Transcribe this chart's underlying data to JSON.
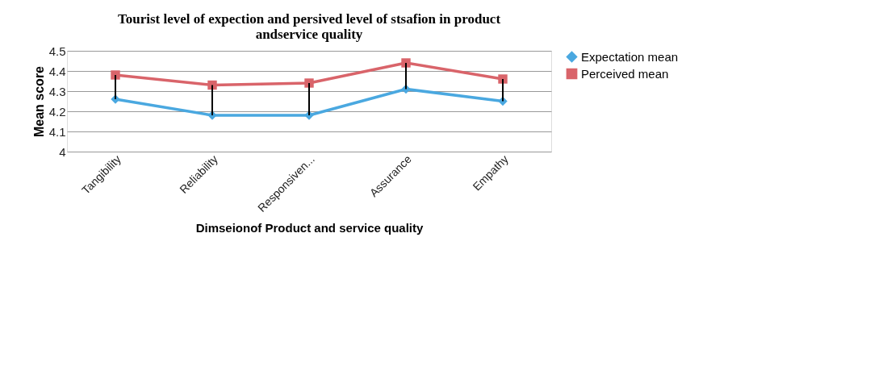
{
  "chart_data": {
    "type": "line",
    "title": "Tourist level of expection and persived level of stsafion in product andservice quality",
    "xlabel": "Dimseionof Product and service quality",
    "ylabel": "Mean score",
    "categories": [
      "Tangibility",
      "Reliability",
      "Responsiven...",
      "Assurance",
      "Empathy"
    ],
    "series": [
      {
        "name": "Expectation mean",
        "color": "#4aa8e0",
        "marker": "diamond",
        "values": [
          4.26,
          4.18,
          4.18,
          4.31,
          4.25
        ],
        "errors": [
          [
            4.26,
            4.38
          ],
          [
            4.18,
            4.33
          ],
          [
            4.18,
            4.34
          ],
          [
            4.31,
            4.44
          ],
          [
            4.25,
            4.36
          ]
        ]
      },
      {
        "name": "Perceived mean",
        "color": "#d9646a",
        "marker": "square",
        "values": [
          4.38,
          4.33,
          4.34,
          4.44,
          4.36
        ]
      }
    ],
    "ylim": [
      4,
      4.5
    ],
    "yticks": [
      4,
      4.1,
      4.2,
      4.3,
      4.4,
      4.5
    ],
    "grid": "y",
    "legend": "right",
    "line_style": "solid"
  }
}
